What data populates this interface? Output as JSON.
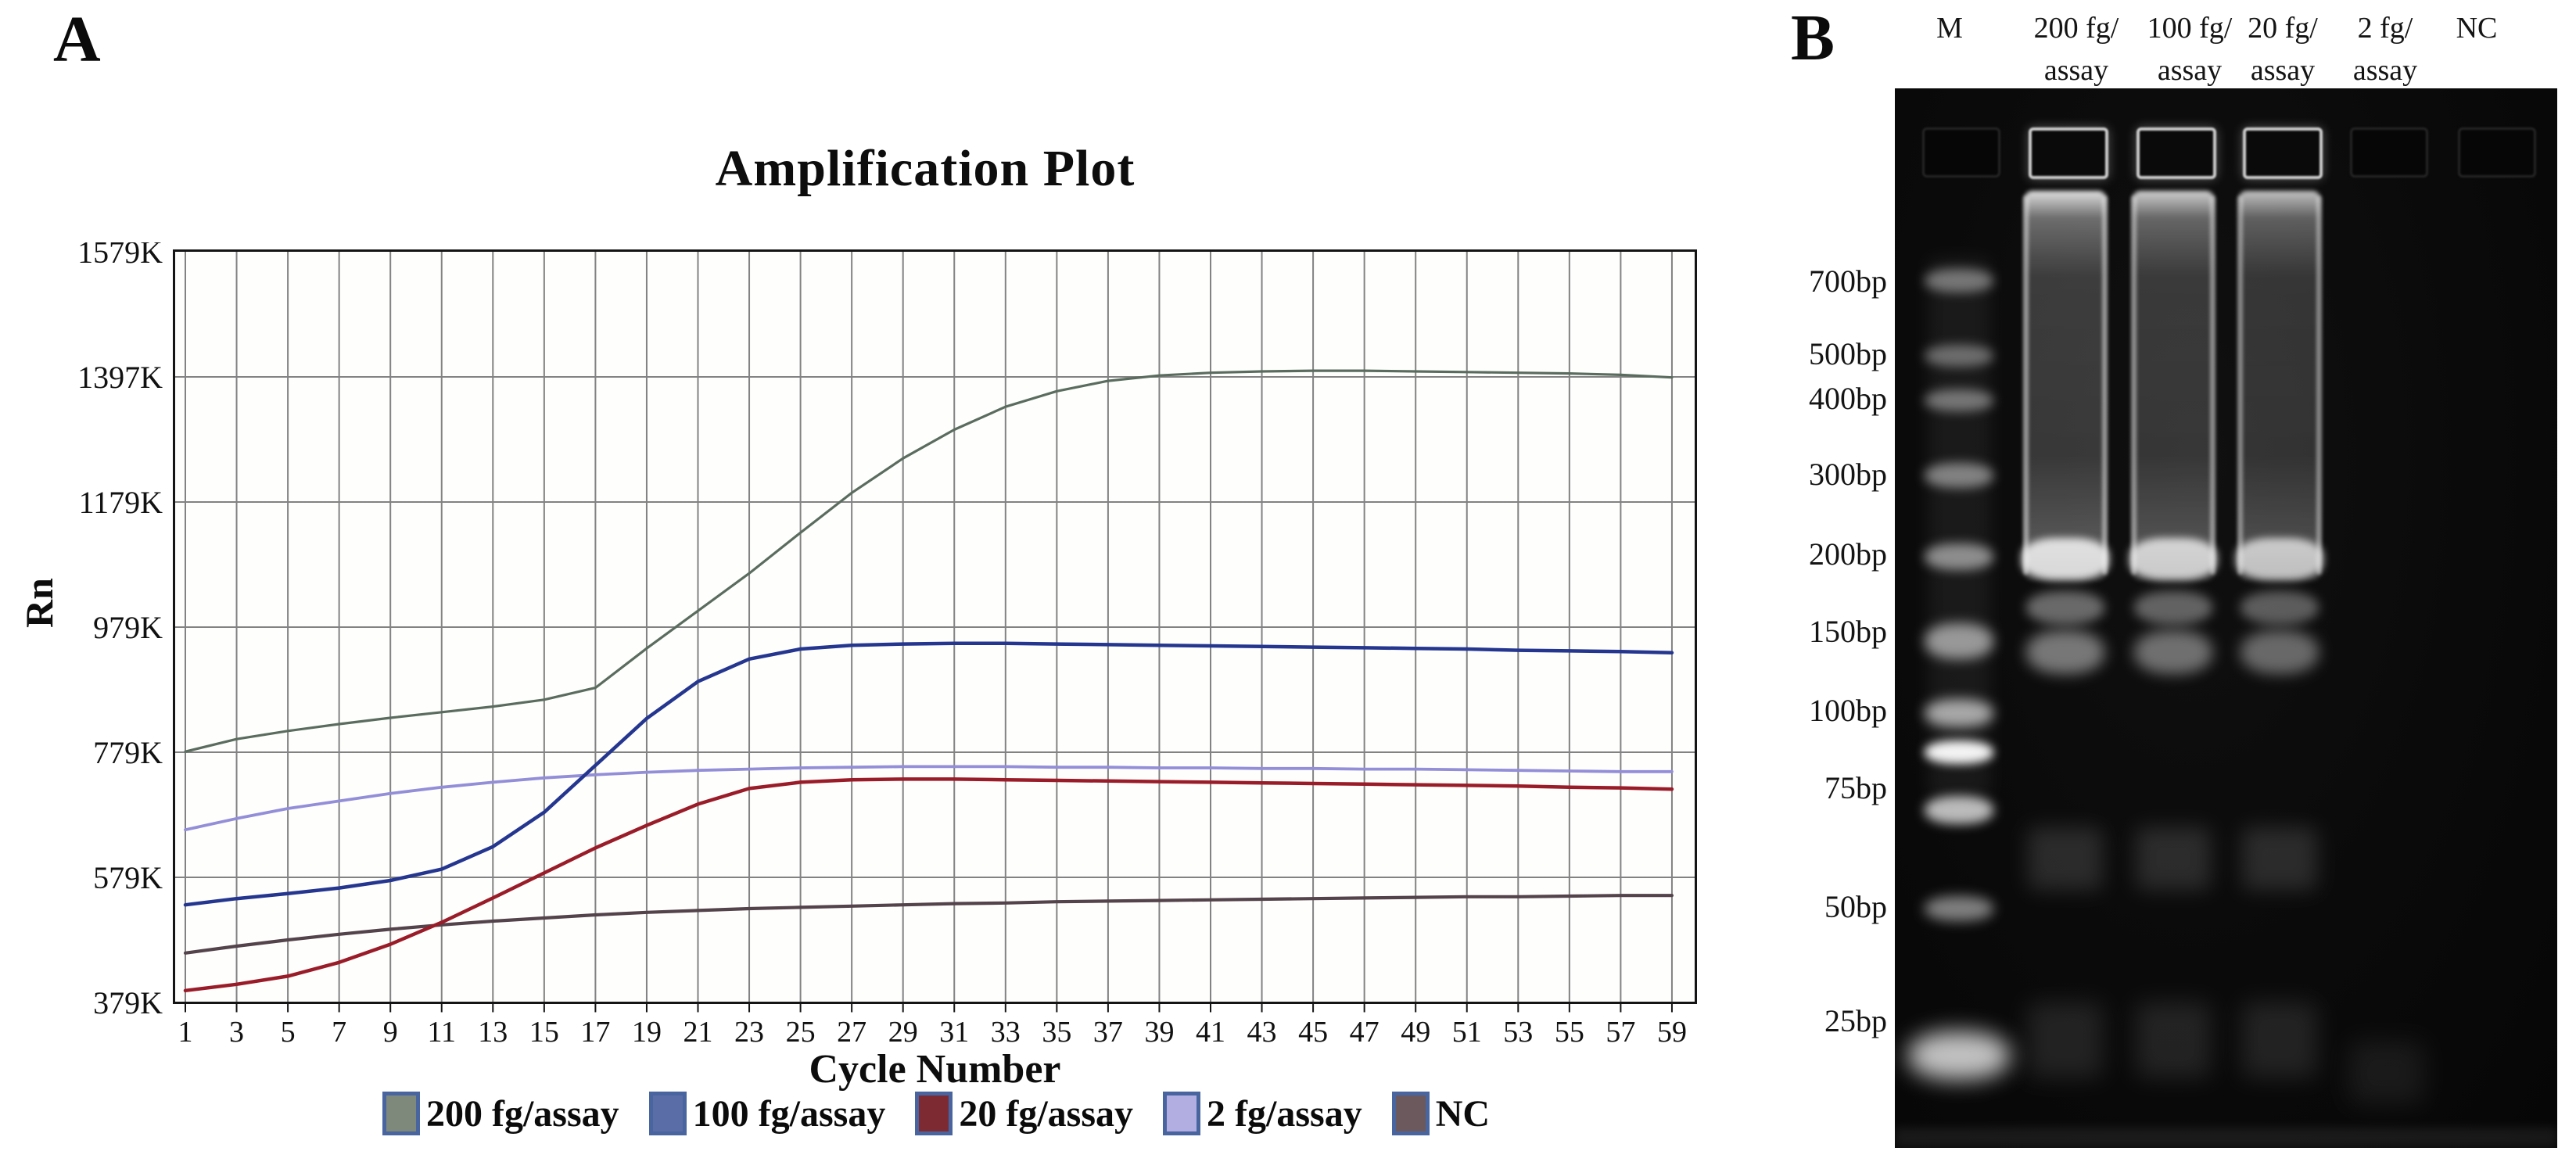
{
  "figure": {
    "panel_a_label": "A",
    "panel_b_label": "B"
  },
  "chart_data": {
    "type": "line",
    "title": "Amplification Plot",
    "xlabel": "Cycle Number",
    "ylabel": "Rn",
    "x": [
      1,
      3,
      5,
      7,
      9,
      11,
      13,
      15,
      17,
      19,
      21,
      23,
      25,
      27,
      29,
      31,
      33,
      35,
      37,
      39,
      41,
      43,
      45,
      47,
      49,
      51,
      53,
      55,
      57,
      59
    ],
    "y_tick_labels": [
      "1579K",
      "1397K",
      "1179K",
      "979K",
      "779K",
      "579K",
      "379K"
    ],
    "y_tick_values": [
      1579,
      1397,
      1179,
      979,
      779,
      579,
      379
    ],
    "ylim": [
      379,
      1579
    ],
    "grid": true,
    "legend_position": "bottom",
    "background_color": "#fefefd",
    "grid_color": "#828282",
    "frame_color": "#141414",
    "legend_swatch_border": "#49659f",
    "series": [
      {
        "name": "200 fg/assay",
        "line_color": "#5a6c5e",
        "swatch_color": "#7f897b",
        "line_width": 3.2,
        "values": [
          780,
          800,
          813,
          824,
          834,
          843,
          852,
          863,
          882,
          945,
          1005,
          1065,
          1130,
          1195,
          1255,
          1305,
          1345,
          1372,
          1390,
          1399,
          1403,
          1405,
          1406,
          1406,
          1405,
          1404,
          1403,
          1402,
          1400,
          1396
        ]
      },
      {
        "name": "100 fg/assay",
        "line_color": "#24368f",
        "swatch_color": "#5a6da6",
        "line_width": 4.5,
        "values": [
          535,
          545,
          553,
          562,
          574,
          592,
          628,
          683,
          758,
          833,
          892,
          928,
          944,
          950,
          952,
          953,
          953,
          952,
          951,
          950,
          949,
          948,
          947,
          946,
          945,
          944,
          942,
          941,
          940,
          938
        ]
      },
      {
        "name": "20 fg/assay",
        "line_color": "#9a1c28",
        "swatch_color": "#7e2a33",
        "line_width": 4.5,
        "values": [
          398,
          408,
          421,
          443,
          472,
          507,
          546,
          586,
          626,
          662,
          696,
          721,
          731,
          735,
          736,
          736,
          735,
          734,
          733,
          732,
          731,
          730,
          729,
          728,
          727,
          726,
          725,
          723,
          722,
          720
        ]
      },
      {
        "name": "2 fg/assay",
        "line_color": "#938ed8",
        "swatch_color": "#b3aee1",
        "line_width": 3.8,
        "values": [
          655,
          673,
          689,
          701,
          713,
          723,
          731,
          738,
          743,
          747,
          750,
          752,
          754,
          755,
          756,
          756,
          756,
          755,
          755,
          754,
          754,
          753,
          753,
          752,
          752,
          751,
          750,
          749,
          748,
          748
        ]
      },
      {
        "name": "NC",
        "line_color": "#54434a",
        "swatch_color": "#6b595d",
        "line_width": 4.2,
        "values": [
          458,
          469,
          479,
          488,
          496,
          503,
          509,
          514,
          519,
          523,
          526,
          529,
          531,
          533,
          535,
          537,
          538,
          540,
          541,
          542,
          543,
          544,
          545,
          546,
          547,
          548,
          548,
          549,
          550,
          550
        ]
      }
    ]
  },
  "gel": {
    "lane_labels": [
      {
        "line1": "M",
        "line2": ""
      },
      {
        "line1": "200 fg/",
        "line2": "assay"
      },
      {
        "line1": "100 fg/",
        "line2": "assay"
      },
      {
        "line1": "20 fg/",
        "line2": "assay"
      },
      {
        "line1": "2 fg/",
        "line2": "assay"
      },
      {
        "line1": "NC",
        "line2": ""
      }
    ],
    "ladder_labels": [
      "700bp",
      "500bp",
      "400bp",
      "300bp",
      "200bp",
      "150bp",
      "100bp",
      "75bp",
      "50bp",
      "25bp"
    ],
    "lanes_with_product": [
      "200 fg/assay",
      "100 fg/assay",
      "20 fg/assay"
    ],
    "lanes_without_product": [
      "2 fg/assay",
      "NC"
    ]
  }
}
